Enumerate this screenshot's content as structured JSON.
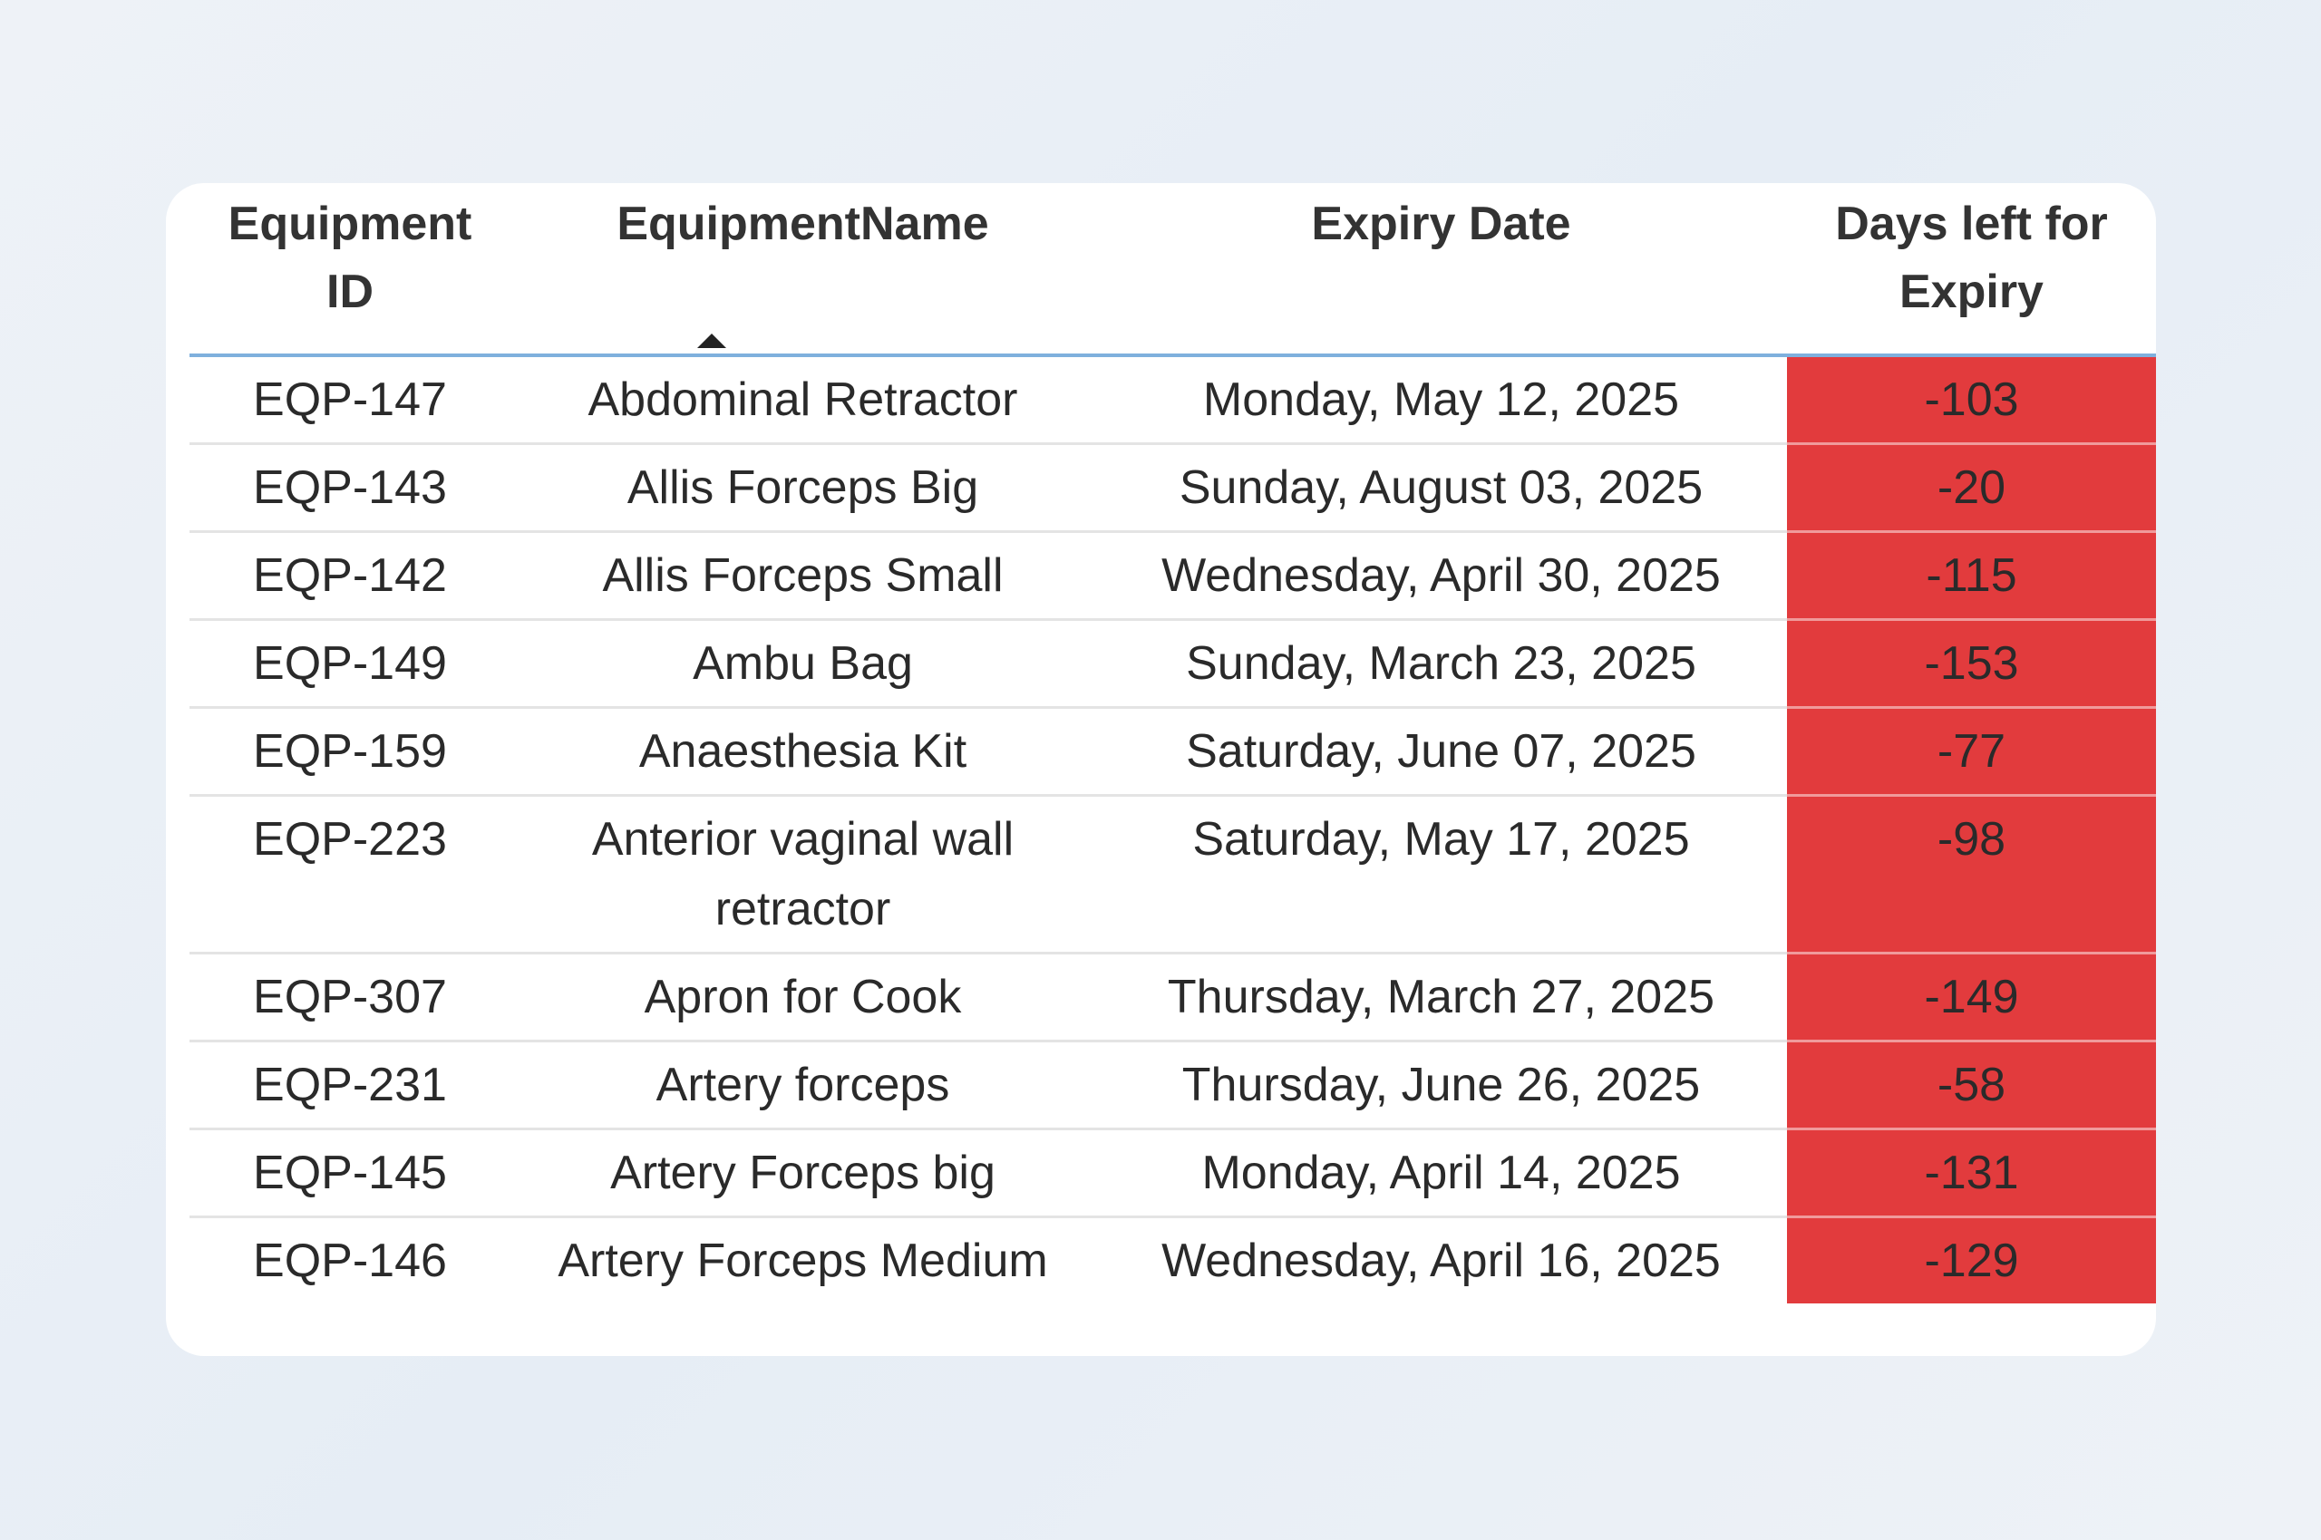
{
  "table": {
    "columns": [
      "Equipment ID",
      "EquipmentName",
      "Expiry Date",
      "Days left for Expiry"
    ],
    "rows": [
      [
        "EQP-147",
        "Abdominal Retractor",
        "Monday, May 12, 2025",
        -103
      ],
      [
        "EQP-143",
        "Allis Forceps Big",
        "Sunday, August 03, 2025",
        -20
      ],
      [
        "EQP-142",
        "Allis Forceps Small",
        "Wednesday, April 30, 2025",
        -115
      ],
      [
        "EQP-149",
        "Ambu Bag",
        "Sunday, March 23, 2025",
        -153
      ],
      [
        "EQP-159",
        "Anaesthesia Kit",
        "Saturday, June 07, 2025",
        -77
      ],
      [
        "EQP-223",
        "Anterior vaginal wall retractor",
        "Saturday, May 17, 2025",
        -98
      ],
      [
        "EQP-307",
        "Apron for Cook",
        "Thursday, March 27, 2025",
        -149
      ],
      [
        "EQP-231",
        "Artery forceps",
        "Thursday, June 26, 2025",
        -58
      ],
      [
        "EQP-145",
        "Artery Forceps big",
        "Monday, April 14, 2025",
        -131
      ],
      [
        "EQP-146",
        "Artery Forceps Medium",
        "Wednesday, April 16, 2025",
        -129
      ]
    ]
  }
}
